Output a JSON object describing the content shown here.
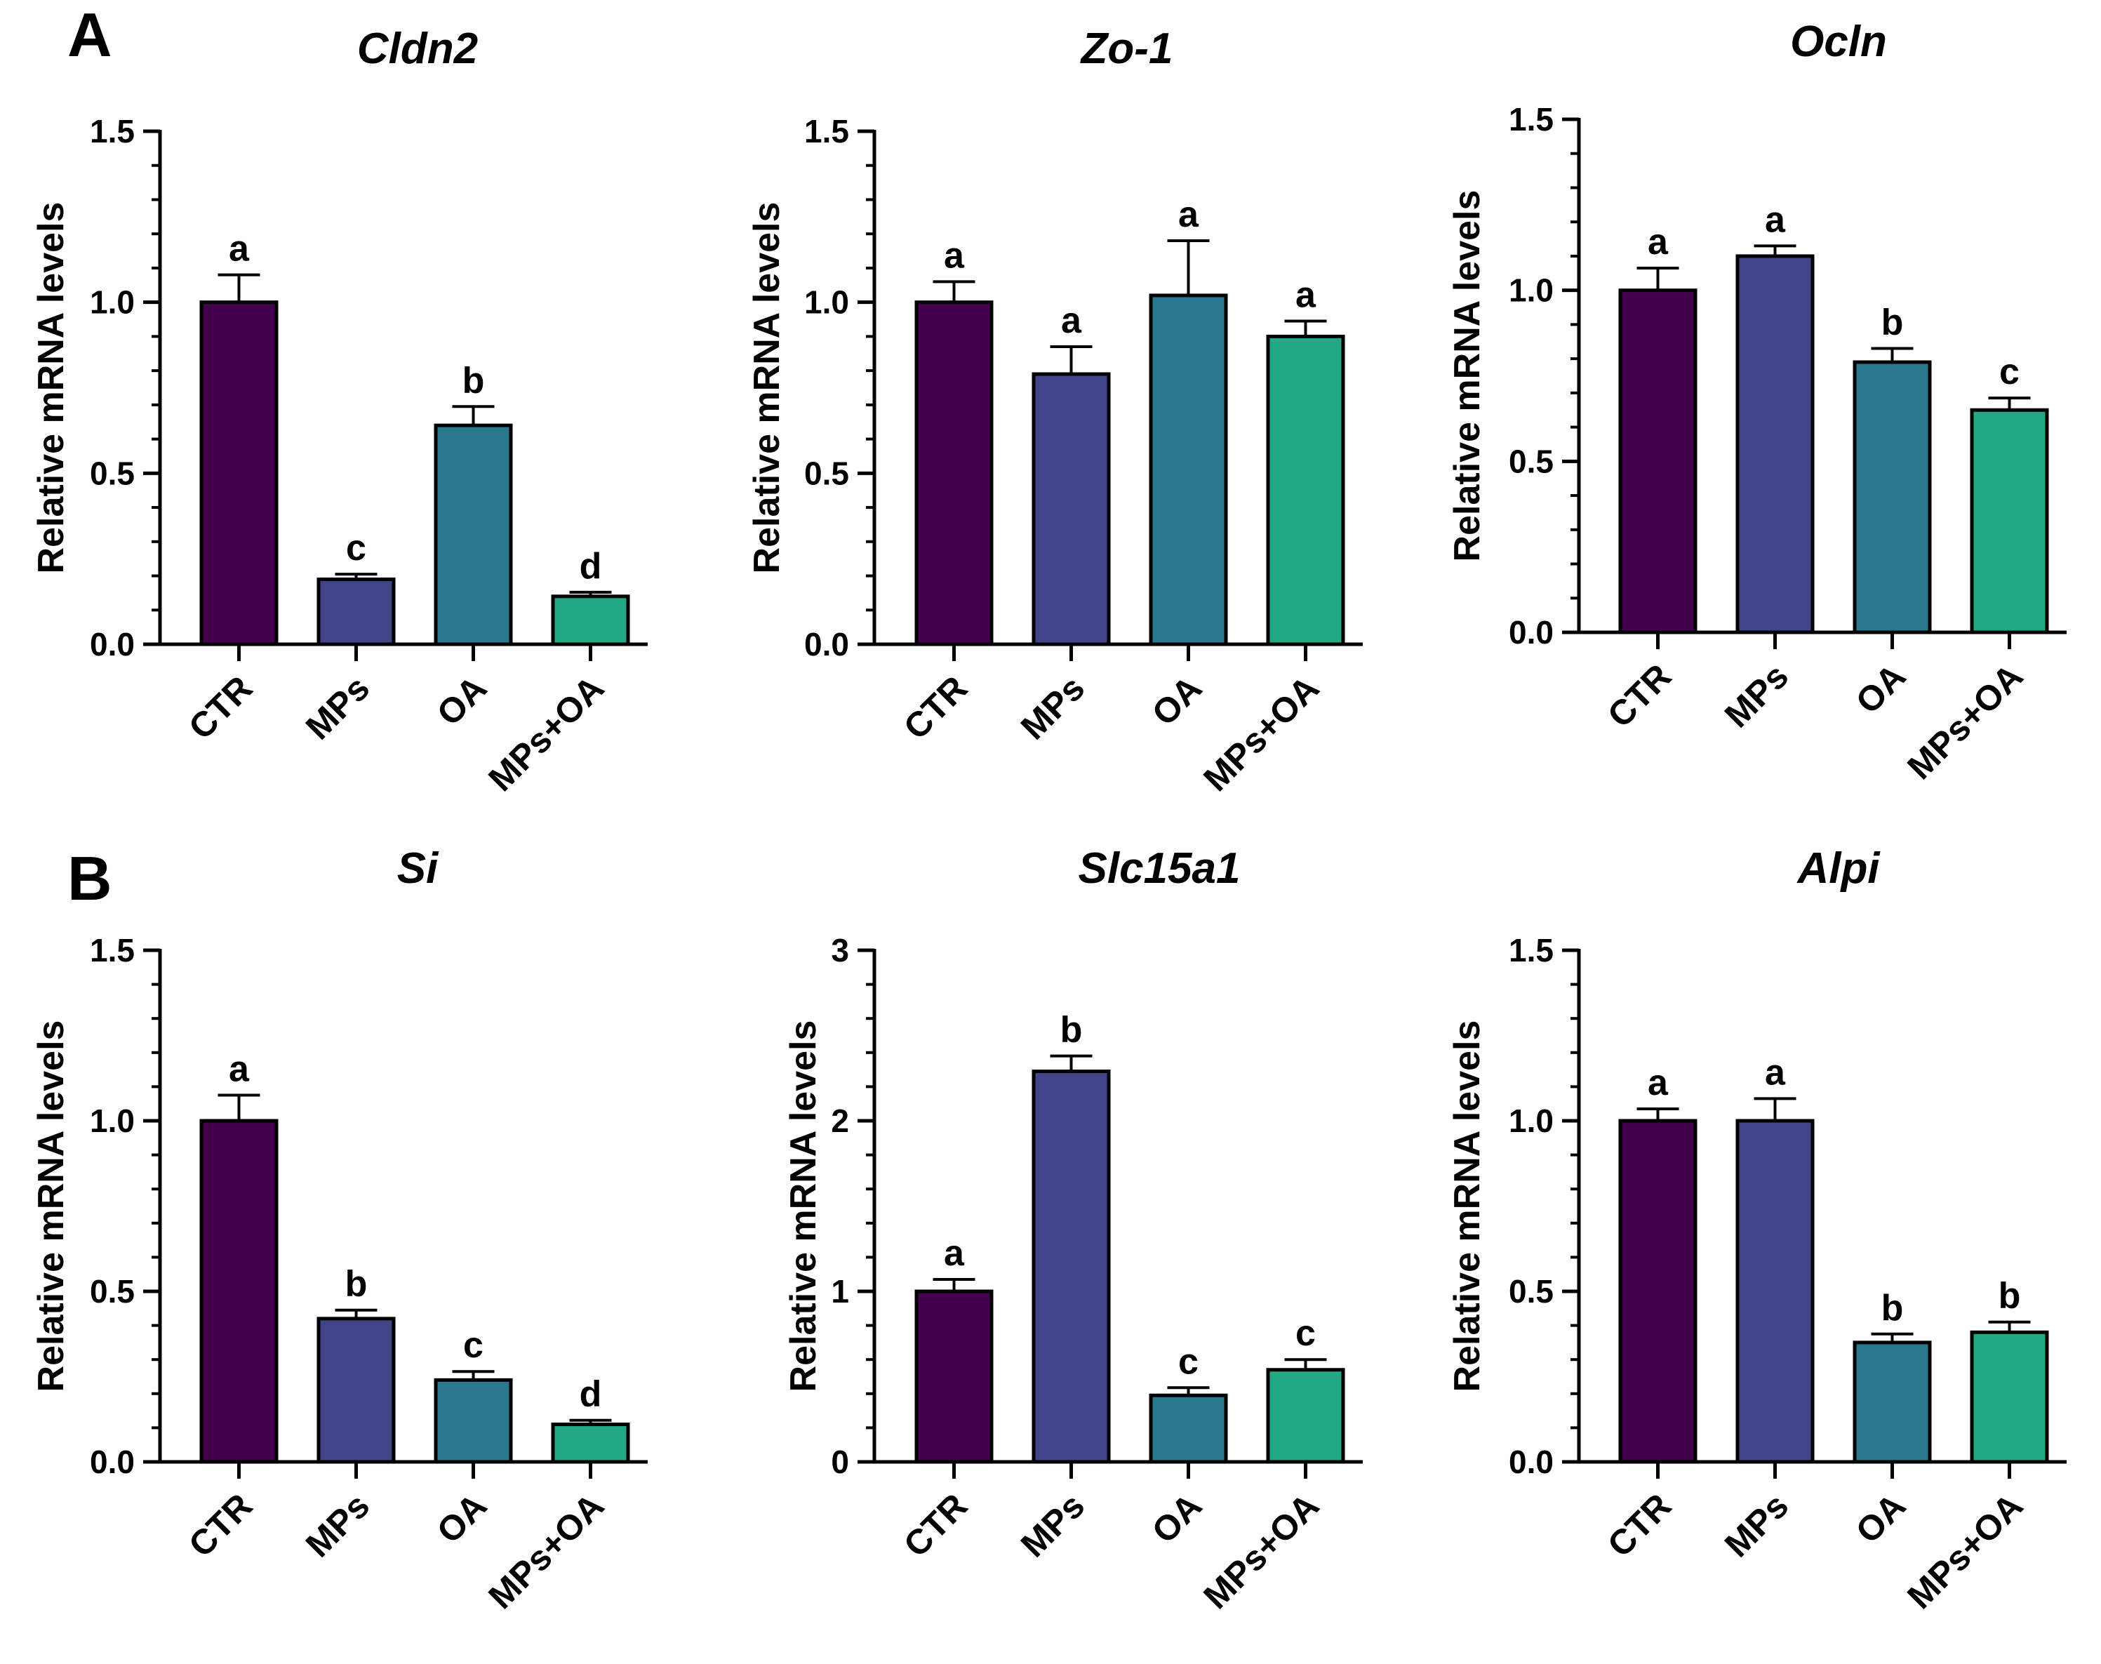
{
  "figure": {
    "panel_labels": [
      "A",
      "B"
    ],
    "series_colors": [
      "#43004d",
      "#414487",
      "#2a788e",
      "#22a884"
    ]
  },
  "chart_data": [
    {
      "type": "bar",
      "title": "Cldn2",
      "xlabel": "",
      "ylabel": "Relative mRNA levels",
      "categories": [
        "CTR",
        "MPs",
        "OA",
        "MPs+OA"
      ],
      "values": [
        1.0,
        0.19,
        0.64,
        0.14
      ],
      "errors": [
        0.08,
        0.015,
        0.055,
        0.012
      ],
      "significance": [
        "a",
        "c",
        "b",
        "d"
      ],
      "ylim": [
        0,
        1.5
      ],
      "yticks": [
        0,
        0.5,
        1.0,
        1.5
      ],
      "ytick_labels": [
        "0.0",
        "0.5",
        "1.0",
        "1.5"
      ],
      "yminor": 0.1,
      "grid": false
    },
    {
      "type": "bar",
      "title": "Zo-1",
      "xlabel": "",
      "ylabel": "Relative mRNA levels",
      "categories": [
        "CTR",
        "MPs",
        "OA",
        "MPs+OA"
      ],
      "values": [
        1.0,
        0.79,
        1.02,
        0.9
      ],
      "errors": [
        0.06,
        0.08,
        0.16,
        0.045
      ],
      "significance": [
        "a",
        "a",
        "a",
        "a"
      ],
      "ylim": [
        0,
        1.5
      ],
      "yticks": [
        0,
        0.5,
        1.0,
        1.5
      ],
      "ytick_labels": [
        "0.0",
        "0.5",
        "1.0",
        "1.5"
      ],
      "yminor": 0.1,
      "grid": false
    },
    {
      "type": "bar",
      "title": "Ocln",
      "xlabel": "",
      "ylabel": "Relative mRNA levels",
      "categories": [
        "CTR",
        "MPs",
        "OA",
        "MPs+OA"
      ],
      "values": [
        1.0,
        1.1,
        0.79,
        0.65
      ],
      "errors": [
        0.065,
        0.03,
        0.04,
        0.035
      ],
      "significance": [
        "a",
        "a",
        "b",
        "c"
      ],
      "ylim": [
        0,
        1.5
      ],
      "yticks": [
        0,
        0.5,
        1.0,
        1.5
      ],
      "ytick_labels": [
        "0.0",
        "0.5",
        "1.0",
        "1.5"
      ],
      "yminor": 0.1,
      "grid": false
    },
    {
      "type": "bar",
      "title": "Si",
      "xlabel": "",
      "ylabel": "Relative mRNA levels",
      "categories": [
        "CTR",
        "MPs",
        "OA",
        "MPs+OA"
      ],
      "values": [
        1.0,
        0.42,
        0.24,
        0.11
      ],
      "errors": [
        0.075,
        0.025,
        0.025,
        0.012
      ],
      "significance": [
        "a",
        "b",
        "c",
        "d"
      ],
      "ylim": [
        0,
        1.5
      ],
      "yticks": [
        0,
        0.5,
        1.0,
        1.5
      ],
      "ytick_labels": [
        "0.0",
        "0.5",
        "1.0",
        "1.5"
      ],
      "yminor": 0.1,
      "grid": false
    },
    {
      "type": "bar",
      "title": "Slc15a1",
      "xlabel": "",
      "ylabel": "Relative mRNA levels",
      "categories": [
        "CTR",
        "MPs",
        "OA",
        "MPs+OA"
      ],
      "values": [
        1.0,
        2.29,
        0.39,
        0.54
      ],
      "errors": [
        0.07,
        0.09,
        0.045,
        0.06
      ],
      "significance": [
        "a",
        "b",
        "c",
        "c"
      ],
      "ylim": [
        0,
        3
      ],
      "yticks": [
        0,
        1,
        2,
        3
      ],
      "ytick_labels": [
        "0",
        "1",
        "2",
        "3"
      ],
      "yminor": 0.2,
      "grid": false
    },
    {
      "type": "bar",
      "title": "Alpi",
      "xlabel": "",
      "ylabel": "Relative mRNA levels",
      "categories": [
        "CTR",
        "MPs",
        "OA",
        "MPs+OA"
      ],
      "values": [
        1.0,
        1.0,
        0.35,
        0.38
      ],
      "errors": [
        0.035,
        0.065,
        0.025,
        0.03
      ],
      "significance": [
        "a",
        "a",
        "b",
        "b"
      ],
      "ylim": [
        0,
        1.5
      ],
      "yticks": [
        0,
        0.5,
        1.0,
        1.5
      ],
      "ytick_labels": [
        "0.0",
        "0.5",
        "1.0",
        "1.5"
      ],
      "yminor": 0.1,
      "grid": false
    }
  ]
}
